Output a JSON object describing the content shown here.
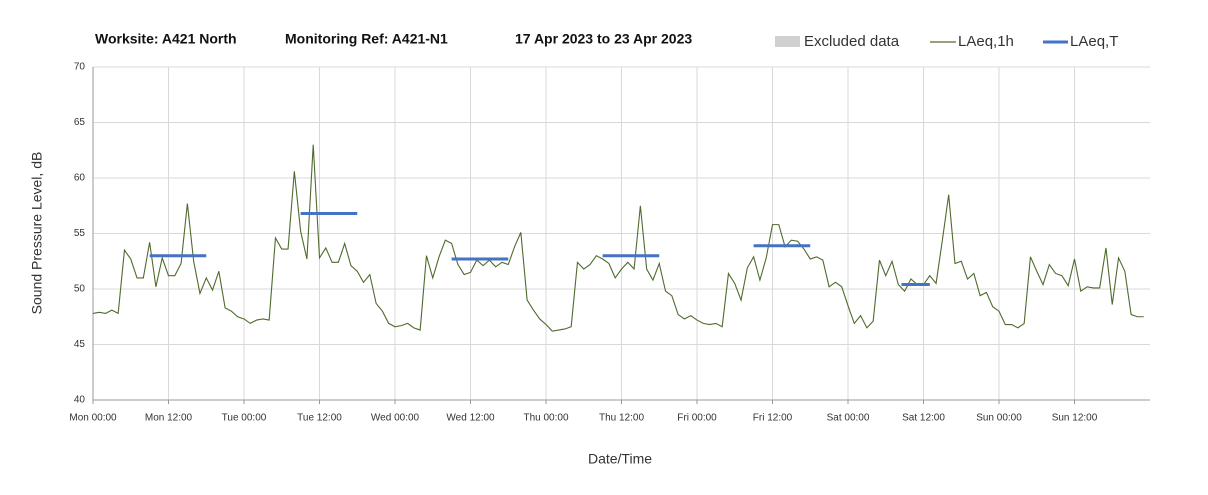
{
  "chart_data": {
    "type": "line",
    "title_parts": [
      "Worksite: A421 North",
      "Monitoring Ref: A421-N1",
      "17 Apr 2023 to 23 Apr 2023"
    ],
    "xlabel": "Date/Time",
    "ylabel": "Sound Pressure Level, dB",
    "xlim": [
      0,
      168
    ],
    "ylim": [
      40,
      70
    ],
    "yticks": [
      40,
      45,
      50,
      55,
      60,
      65,
      70
    ],
    "xticks": [
      {
        "value": 0,
        "label": "Mon 00:00"
      },
      {
        "value": 12,
        "label": "Mon 12:00"
      },
      {
        "value": 24,
        "label": "Tue 00:00"
      },
      {
        "value": 36,
        "label": "Tue 12:00"
      },
      {
        "value": 48,
        "label": "Wed 00:00"
      },
      {
        "value": 60,
        "label": "Wed 12:00"
      },
      {
        "value": 72,
        "label": "Thu 00:00"
      },
      {
        "value": 84,
        "label": "Thu 12:00"
      },
      {
        "value": 96,
        "label": "Fri 00:00"
      },
      {
        "value": 108,
        "label": "Fri 12:00"
      },
      {
        "value": 120,
        "label": "Sat 00:00"
      },
      {
        "value": 132,
        "label": "Sat 12:00"
      },
      {
        "value": 144,
        "label": "Sun 00:00"
      },
      {
        "value": 156,
        "label": "Sun 12:00"
      }
    ],
    "grid": true,
    "excluded": {
      "name": "Excluded data",
      "color": "#d0d0d0"
    },
    "x": [
      0,
      1,
      2,
      3,
      4,
      5,
      6,
      7,
      8,
      9,
      10,
      11,
      12,
      13,
      14,
      15,
      16,
      17,
      18,
      19,
      20,
      21,
      22,
      23,
      24,
      25,
      26,
      27,
      28,
      29,
      30,
      31,
      32,
      33,
      34,
      35,
      36,
      37,
      38,
      39,
      40,
      41,
      42,
      43,
      44,
      45,
      46,
      47,
      48,
      49,
      50,
      51,
      52,
      53,
      54,
      55,
      56,
      57,
      58,
      59,
      60,
      61,
      62,
      63,
      64,
      65,
      66,
      67,
      68,
      69,
      70,
      71,
      72,
      73,
      74,
      75,
      76,
      77,
      78,
      79,
      80,
      81,
      82,
      83,
      84,
      85,
      86,
      87,
      88,
      89,
      90,
      91,
      92,
      93,
      94,
      95,
      96,
      97,
      98,
      99,
      100,
      101,
      102,
      103,
      104,
      105,
      106,
      107,
      108,
      109,
      110,
      111,
      112,
      113,
      114,
      115,
      116,
      117,
      118,
      119,
      120,
      121,
      122,
      123,
      124,
      125,
      126,
      127,
      128,
      129,
      130,
      131,
      132,
      133,
      134,
      135,
      136,
      137,
      138,
      139,
      140,
      141,
      142,
      143,
      144,
      145,
      146,
      147,
      148,
      149,
      150,
      151,
      152,
      153,
      154,
      155,
      156,
      157,
      158,
      159,
      160,
      161,
      162,
      163,
      164,
      165,
      166,
      167
    ],
    "series": [
      {
        "name": "LAeq,1h",
        "color": "#4f6b2e",
        "values": [
          47.8,
          47.9,
          47.8,
          48.1,
          47.8,
          53.5,
          52.7,
          51,
          51,
          54.2,
          50.2,
          52.8,
          51.2,
          51.2,
          52.3,
          57.7,
          52.5,
          49.6,
          51,
          49.9,
          51.6,
          48.3,
          48,
          47.5,
          47.3,
          46.9,
          47.2,
          47.3,
          47.2,
          54.6,
          53.6,
          53.6,
          60.6,
          55.2,
          52.7,
          63,
          52.8,
          53.7,
          52.4,
          52.4,
          54.1,
          52.1,
          51.6,
          50.6,
          51.3,
          48.7,
          48,
          46.9,
          46.6,
          46.7,
          46.9,
          46.5,
          46.3,
          53,
          51,
          52.9,
          54.4,
          54.1,
          52.2,
          51.3,
          51.5,
          52.6,
          52.1,
          52.6,
          52,
          52.4,
          52.2,
          53.8,
          55.1,
          49,
          48.1,
          47.3,
          46.8,
          46.2,
          46.3,
          46.4,
          46.6,
          52.4,
          51.8,
          52.2,
          53,
          52.7,
          52.3,
          51,
          51.8,
          52.4,
          51.8,
          57.5,
          51.8,
          50.8,
          52.3,
          49.8,
          49.4,
          47.7,
          47.3,
          47.6,
          47.2,
          46.9,
          46.8,
          46.9,
          46.6,
          51.4,
          50.5,
          49,
          51.9,
          52.9,
          50.8,
          52.8,
          55.8,
          55.8,
          53.8,
          54.4,
          54.3,
          53.6,
          52.7,
          52.9,
          52.6,
          50.2,
          50.6,
          50.2,
          48.5,
          46.9,
          47.6,
          46.5,
          47.1,
          52.6,
          51.2,
          52.5,
          50.4,
          49.8,
          50.9,
          50.4,
          50.4,
          51.2,
          50.5,
          54.4,
          58.5,
          52.3,
          52.5,
          50.9,
          51.4,
          49.4,
          49.7,
          48.4,
          48,
          46.8,
          46.8,
          46.5,
          46.9,
          52.9,
          51.6,
          50.4,
          52.2,
          51.4,
          51.2,
          50.3,
          52.7,
          49.8,
          50.2,
          50.1,
          50.1,
          53.7,
          48.6,
          52.8,
          51.6,
          47.7,
          47.5,
          47.5
        ]
      }
    ],
    "periods": {
      "name": "LAeq,T",
      "color": "#4472c4",
      "items": [
        {
          "start": 9,
          "end": 18,
          "value": 53
        },
        {
          "start": 33,
          "end": 42,
          "value": 56.8
        },
        {
          "start": 57,
          "end": 66,
          "value": 52.7
        },
        {
          "start": 81,
          "end": 90,
          "value": 53
        },
        {
          "start": 105,
          "end": 114,
          "value": 53.9
        },
        {
          "start": 128.5,
          "end": 133,
          "value": 50.4
        }
      ]
    }
  }
}
